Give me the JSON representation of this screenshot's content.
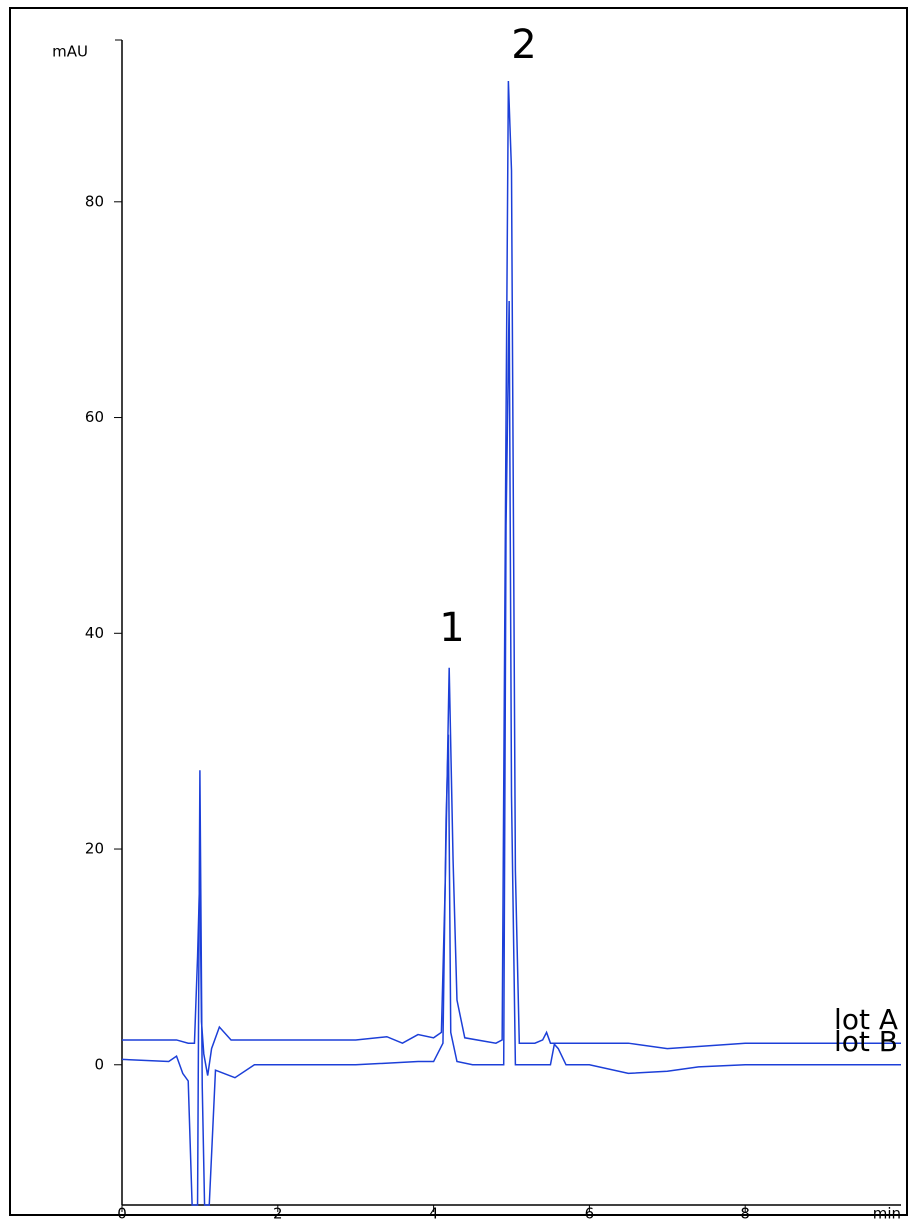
{
  "chart_data": {
    "type": "line",
    "y_label": "mAU",
    "x_label": "min",
    "xlim": [
      0,
      10
    ],
    "ylim": [
      -13,
      95
    ],
    "xticks": [
      0,
      2,
      4,
      6,
      8
    ],
    "yticks": [
      0,
      20,
      40,
      60,
      80
    ],
    "annotations": [
      "1",
      "2"
    ],
    "series": [
      {
        "name": "lot A",
        "color": "#1c3fd8",
        "x": [
          0,
          0.7,
          0.85,
          0.93,
          0.97,
          1.0,
          1.02,
          1.05,
          1.1,
          1.15,
          1.25,
          1.4,
          2,
          3,
          3.4,
          3.6,
          3.8,
          4.0,
          4.1,
          4.15,
          4.2,
          4.25,
          4.3,
          4.4,
          4.8,
          4.88,
          4.93,
          4.96,
          5.0,
          5.05,
          5.1,
          5.3,
          5.4,
          5.45,
          5.5,
          6,
          6.5,
          7,
          8,
          9,
          10
        ],
        "values": [
          2.3,
          2.3,
          2.0,
          2.0,
          10,
          18,
          4,
          1.0,
          -1,
          1.5,
          3.5,
          2.3,
          2.3,
          2.3,
          2.6,
          2.0,
          2.8,
          2.5,
          3,
          17,
          36.8,
          19,
          6,
          2.5,
          2.0,
          2.3,
          60,
          91.2,
          82.9,
          18,
          2.0,
          2.0,
          2.3,
          3.0,
          2.0,
          2.0,
          2.0,
          1.5,
          2.0,
          2.0,
          2.0
        ]
      },
      {
        "name": "lot B",
        "color": "#1c3fd8",
        "x": [
          0,
          0.6,
          0.7,
          0.78,
          0.85,
          0.9,
          0.94,
          0.97,
          1.0,
          1.03,
          1.06,
          1.09,
          1.12,
          1.2,
          1.45,
          1.7,
          2,
          3,
          3.8,
          4.0,
          4.12,
          4.16,
          4.19,
          4.22,
          4.3,
          4.5,
          4.85,
          4.9,
          4.93,
          4.97,
          5.0,
          5.05,
          5.1,
          5.5,
          5.55,
          5.6,
          5.7,
          6,
          6.5,
          7,
          7.4,
          8,
          9,
          10
        ],
        "values": [
          0.5,
          0.3,
          0.8,
          -0.8,
          -1.5,
          -13,
          -13,
          -13,
          27.3,
          -2,
          -13,
          -13,
          -13,
          -0.5,
          -1.2,
          0,
          0,
          0,
          0.3,
          0.3,
          2,
          22.7,
          30.6,
          3,
          0.3,
          0,
          0,
          0,
          50,
          70.8,
          25,
          0,
          0,
          0,
          1.9,
          1.5,
          0,
          0,
          -0.8,
          -0.6,
          -0.2,
          0,
          0,
          0
        ]
      }
    ]
  }
}
